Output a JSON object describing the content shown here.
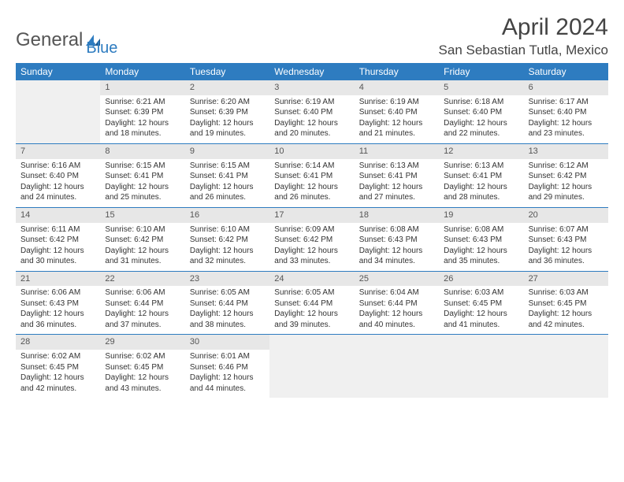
{
  "logo": {
    "text1": "General",
    "text2": "Blue"
  },
  "title": "April 2024",
  "location": "San Sebastian Tutla, Mexico",
  "daynames": [
    "Sunday",
    "Monday",
    "Tuesday",
    "Wednesday",
    "Thursday",
    "Friday",
    "Saturday"
  ],
  "colors": {
    "header_bg": "#2e7cc0",
    "header_text": "#ffffff",
    "daynum_bg": "#e7e7e7",
    "border": "#2e7cc0",
    "empty_bg": "#f0f0f0",
    "text": "#333333"
  },
  "weeks": [
    [
      {
        "empty": true
      },
      {
        "n": "1",
        "sr": "Sunrise: 6:21 AM",
        "ss": "Sunset: 6:39 PM",
        "d1": "Daylight: 12 hours",
        "d2": "and 18 minutes."
      },
      {
        "n": "2",
        "sr": "Sunrise: 6:20 AM",
        "ss": "Sunset: 6:39 PM",
        "d1": "Daylight: 12 hours",
        "d2": "and 19 minutes."
      },
      {
        "n": "3",
        "sr": "Sunrise: 6:19 AM",
        "ss": "Sunset: 6:40 PM",
        "d1": "Daylight: 12 hours",
        "d2": "and 20 minutes."
      },
      {
        "n": "4",
        "sr": "Sunrise: 6:19 AM",
        "ss": "Sunset: 6:40 PM",
        "d1": "Daylight: 12 hours",
        "d2": "and 21 minutes."
      },
      {
        "n": "5",
        "sr": "Sunrise: 6:18 AM",
        "ss": "Sunset: 6:40 PM",
        "d1": "Daylight: 12 hours",
        "d2": "and 22 minutes."
      },
      {
        "n": "6",
        "sr": "Sunrise: 6:17 AM",
        "ss": "Sunset: 6:40 PM",
        "d1": "Daylight: 12 hours",
        "d2": "and 23 minutes."
      }
    ],
    [
      {
        "n": "7",
        "sr": "Sunrise: 6:16 AM",
        "ss": "Sunset: 6:40 PM",
        "d1": "Daylight: 12 hours",
        "d2": "and 24 minutes."
      },
      {
        "n": "8",
        "sr": "Sunrise: 6:15 AM",
        "ss": "Sunset: 6:41 PM",
        "d1": "Daylight: 12 hours",
        "d2": "and 25 minutes."
      },
      {
        "n": "9",
        "sr": "Sunrise: 6:15 AM",
        "ss": "Sunset: 6:41 PM",
        "d1": "Daylight: 12 hours",
        "d2": "and 26 minutes."
      },
      {
        "n": "10",
        "sr": "Sunrise: 6:14 AM",
        "ss": "Sunset: 6:41 PM",
        "d1": "Daylight: 12 hours",
        "d2": "and 26 minutes."
      },
      {
        "n": "11",
        "sr": "Sunrise: 6:13 AM",
        "ss": "Sunset: 6:41 PM",
        "d1": "Daylight: 12 hours",
        "d2": "and 27 minutes."
      },
      {
        "n": "12",
        "sr": "Sunrise: 6:13 AM",
        "ss": "Sunset: 6:41 PM",
        "d1": "Daylight: 12 hours",
        "d2": "and 28 minutes."
      },
      {
        "n": "13",
        "sr": "Sunrise: 6:12 AM",
        "ss": "Sunset: 6:42 PM",
        "d1": "Daylight: 12 hours",
        "d2": "and 29 minutes."
      }
    ],
    [
      {
        "n": "14",
        "sr": "Sunrise: 6:11 AM",
        "ss": "Sunset: 6:42 PM",
        "d1": "Daylight: 12 hours",
        "d2": "and 30 minutes."
      },
      {
        "n": "15",
        "sr": "Sunrise: 6:10 AM",
        "ss": "Sunset: 6:42 PM",
        "d1": "Daylight: 12 hours",
        "d2": "and 31 minutes."
      },
      {
        "n": "16",
        "sr": "Sunrise: 6:10 AM",
        "ss": "Sunset: 6:42 PM",
        "d1": "Daylight: 12 hours",
        "d2": "and 32 minutes."
      },
      {
        "n": "17",
        "sr": "Sunrise: 6:09 AM",
        "ss": "Sunset: 6:42 PM",
        "d1": "Daylight: 12 hours",
        "d2": "and 33 minutes."
      },
      {
        "n": "18",
        "sr": "Sunrise: 6:08 AM",
        "ss": "Sunset: 6:43 PM",
        "d1": "Daylight: 12 hours",
        "d2": "and 34 minutes."
      },
      {
        "n": "19",
        "sr": "Sunrise: 6:08 AM",
        "ss": "Sunset: 6:43 PM",
        "d1": "Daylight: 12 hours",
        "d2": "and 35 minutes."
      },
      {
        "n": "20",
        "sr": "Sunrise: 6:07 AM",
        "ss": "Sunset: 6:43 PM",
        "d1": "Daylight: 12 hours",
        "d2": "and 36 minutes."
      }
    ],
    [
      {
        "n": "21",
        "sr": "Sunrise: 6:06 AM",
        "ss": "Sunset: 6:43 PM",
        "d1": "Daylight: 12 hours",
        "d2": "and 36 minutes."
      },
      {
        "n": "22",
        "sr": "Sunrise: 6:06 AM",
        "ss": "Sunset: 6:44 PM",
        "d1": "Daylight: 12 hours",
        "d2": "and 37 minutes."
      },
      {
        "n": "23",
        "sr": "Sunrise: 6:05 AM",
        "ss": "Sunset: 6:44 PM",
        "d1": "Daylight: 12 hours",
        "d2": "and 38 minutes."
      },
      {
        "n": "24",
        "sr": "Sunrise: 6:05 AM",
        "ss": "Sunset: 6:44 PM",
        "d1": "Daylight: 12 hours",
        "d2": "and 39 minutes."
      },
      {
        "n": "25",
        "sr": "Sunrise: 6:04 AM",
        "ss": "Sunset: 6:44 PM",
        "d1": "Daylight: 12 hours",
        "d2": "and 40 minutes."
      },
      {
        "n": "26",
        "sr": "Sunrise: 6:03 AM",
        "ss": "Sunset: 6:45 PM",
        "d1": "Daylight: 12 hours",
        "d2": "and 41 minutes."
      },
      {
        "n": "27",
        "sr": "Sunrise: 6:03 AM",
        "ss": "Sunset: 6:45 PM",
        "d1": "Daylight: 12 hours",
        "d2": "and 42 minutes."
      }
    ],
    [
      {
        "n": "28",
        "sr": "Sunrise: 6:02 AM",
        "ss": "Sunset: 6:45 PM",
        "d1": "Daylight: 12 hours",
        "d2": "and 42 minutes."
      },
      {
        "n": "29",
        "sr": "Sunrise: 6:02 AM",
        "ss": "Sunset: 6:45 PM",
        "d1": "Daylight: 12 hours",
        "d2": "and 43 minutes."
      },
      {
        "n": "30",
        "sr": "Sunrise: 6:01 AM",
        "ss": "Sunset: 6:46 PM",
        "d1": "Daylight: 12 hours",
        "d2": "and 44 minutes."
      },
      {
        "empty": true
      },
      {
        "empty": true
      },
      {
        "empty": true
      },
      {
        "empty": true
      }
    ]
  ]
}
